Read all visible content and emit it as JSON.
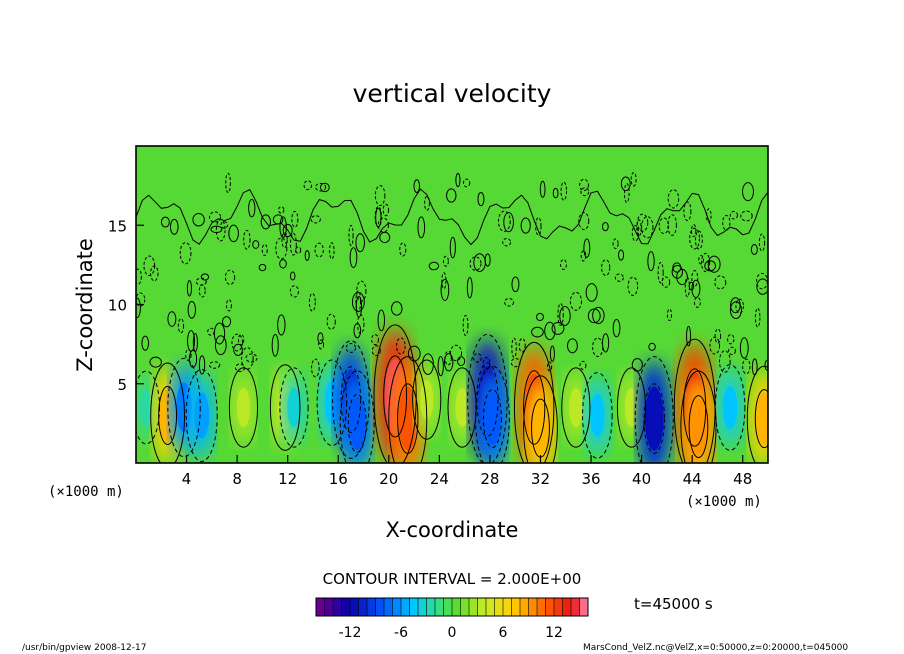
{
  "chart_data": {
    "type": "heatmap",
    "title": "vertical velocity",
    "xlabel": "X-coordinate",
    "ylabel": "Z-coordinate",
    "x_unit": "(×1000 m)",
    "y_unit": "(×1000 m)",
    "xlim": [
      0,
      50
    ],
    "ylim": [
      0,
      20
    ],
    "x_ticks": [
      4,
      8,
      12,
      16,
      20,
      24,
      28,
      32,
      36,
      40,
      44,
      48
    ],
    "y_ticks": [
      5,
      10,
      15
    ],
    "contour_label": "CONTOUR INTERVAL = 2.000E+00",
    "time_label": "t=45000 s",
    "colorbar": {
      "min": -16,
      "max": 16,
      "step": 1,
      "ticks": [
        -12,
        -6,
        0,
        6,
        12
      ]
    },
    "cells": [
      {
        "x": 0.8,
        "z": 3.5,
        "w": -2
      },
      {
        "x": 2.5,
        "z": 3.0,
        "w": 7
      },
      {
        "x": 3.8,
        "z": 3.5,
        "w": -6
      },
      {
        "x": 5.2,
        "z": 3.0,
        "w": -5
      },
      {
        "x": 8.5,
        "z": 3.5,
        "w": 3
      },
      {
        "x": 11.8,
        "z": 3.5,
        "w": 4
      },
      {
        "x": 12.5,
        "z": 3.5,
        "w": -3
      },
      {
        "x": 15.5,
        "z": 3.8,
        "w": -4
      },
      {
        "x": 17.0,
        "z": 4.0,
        "w": -9
      },
      {
        "x": 17.5,
        "z": 2.5,
        "w": -7
      },
      {
        "x": 20.5,
        "z": 4.2,
        "w": 13
      },
      {
        "x": 21.5,
        "z": 2.8,
        "w": 10
      },
      {
        "x": 23.0,
        "z": 4.0,
        "w": 3
      },
      {
        "x": 25.8,
        "z": 3.5,
        "w": 3
      },
      {
        "x": 27.8,
        "z": 4.0,
        "w": -11
      },
      {
        "x": 28.2,
        "z": 2.8,
        "w": -7
      },
      {
        "x": 31.5,
        "z": 3.5,
        "w": 11
      },
      {
        "x": 32.0,
        "z": 2.2,
        "w": 7
      },
      {
        "x": 34.8,
        "z": 3.5,
        "w": 3
      },
      {
        "x": 36.5,
        "z": 3.0,
        "w": -4
      },
      {
        "x": 39.2,
        "z": 3.5,
        "w": 3
      },
      {
        "x": 41.0,
        "z": 2.8,
        "w": -10
      },
      {
        "x": 44.2,
        "z": 3.5,
        "w": 12
      },
      {
        "x": 44.5,
        "z": 2.3,
        "w": 8
      },
      {
        "x": 47.0,
        "z": 3.5,
        "w": -4
      },
      {
        "x": 49.7,
        "z": 2.8,
        "w": 7
      }
    ]
  },
  "footer": {
    "left": "/usr/bin/gpview   2008-12-17",
    "right": "MarsCond_VelZ.nc@VelZ,x=0:50000,z=0:20000,t=045000"
  }
}
